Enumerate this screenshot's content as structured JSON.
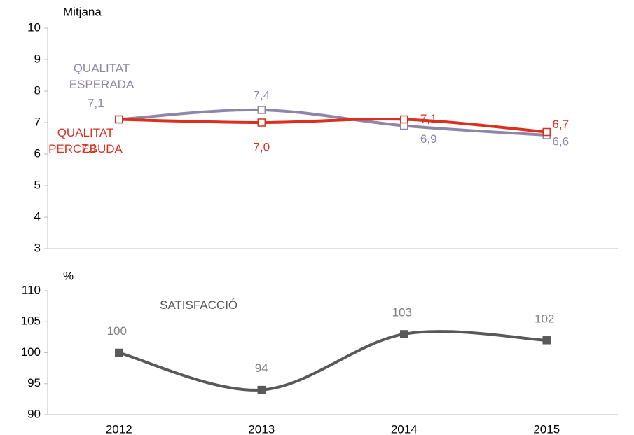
{
  "chart_data": [
    {
      "type": "line",
      "y_label": "Mitjana",
      "ylim": [
        3,
        10
      ],
      "yticks": [
        3,
        4,
        5,
        6,
        7,
        8,
        9,
        10
      ],
      "series": [
        {
          "name": "QUALITAT ESPERADA",
          "color": "#8e86a8",
          "values": [
            7.1,
            7.4,
            6.9,
            6.6
          ],
          "value_labels": [
            "7,1",
            "7,4",
            "6,9",
            "6,6"
          ]
        },
        {
          "name": "QUALITAT PERCEBUDA",
          "color": "#d9301f",
          "values": [
            7.1,
            7.0,
            7.1,
            6.7
          ],
          "value_labels": [
            "7,1",
            "7,0",
            "7,1",
            "6,7"
          ]
        }
      ]
    },
    {
      "type": "line",
      "y_label": "%",
      "ylim": [
        90,
        110
      ],
      "yticks": [
        90,
        95,
        100,
        105,
        110
      ],
      "categories": [
        "2012",
        "2013",
        "2014",
        "2015"
      ],
      "series": [
        {
          "name": "SATISFACCIÓ",
          "color": "#595959",
          "values": [
            100,
            94,
            103,
            102
          ]
        }
      ]
    }
  ]
}
